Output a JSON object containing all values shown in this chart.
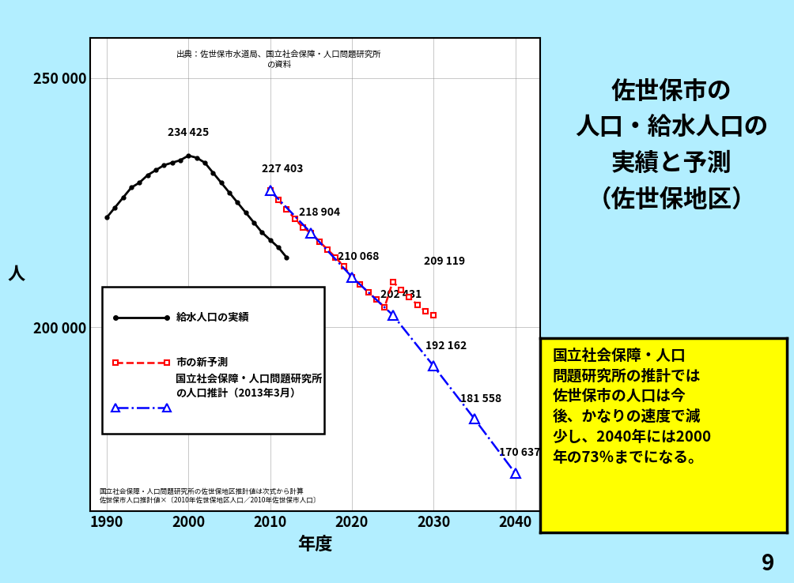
{
  "bg_color": "#b2eeff",
  "plot_bg_color": "#ffffff",
  "title_text": "佐世保市の\n人口・給水人口の\n実績と予測\n（佐世保地区）",
  "ylabel": "人",
  "xlabel": "年度",
  "source_note": "出典：佐世保市水道局、国立社会保障・人口問題研究所\nの資料",
  "footnote": "国立社会保障・人口問題研究所の佐世保地区推計値は次式から計算\n佐世保市人口推計値×〔2010年佐世保地区人口／2010年佐世保市人口〕",
  "box_text": "国立社会保障・人口\n問題研究所の推計では\n佐世保市の人口は今\n後、かなりの速度で減\n少し、2040年には2000\n年の73％までになる。",
  "page_num": "9",
  "ylim": [
    163000,
    258000
  ],
  "xlim": [
    1988,
    2043
  ],
  "yticks": [
    200000,
    250000
  ],
  "xticks": [
    1990,
    2000,
    2010,
    2020,
    2030,
    2040
  ],
  "actual_x": [
    1990,
    1991,
    1992,
    1993,
    1994,
    1995,
    1996,
    1997,
    1998,
    1999,
    2000,
    2001,
    2002,
    2003,
    2004,
    2005,
    2006,
    2007,
    2008,
    2009,
    2010,
    2011,
    2012
  ],
  "actual_y": [
    222000,
    224000,
    226000,
    228000,
    229000,
    230500,
    231500,
    232500,
    233000,
    233500,
    234425,
    234000,
    233000,
    231000,
    229000,
    227000,
    225000,
    223000,
    221000,
    219000,
    217500,
    216000,
    214000
  ],
  "city_pred_x": [
    2010,
    2011,
    2012,
    2013,
    2014,
    2015,
    2016,
    2017,
    2018,
    2019,
    2020,
    2021,
    2022,
    2023,
    2024,
    2025,
    2026,
    2027,
    2028,
    2029,
    2030
  ],
  "city_pred_y": [
    227403,
    225500,
    223600,
    221800,
    220000,
    218904,
    217200,
    215600,
    214000,
    212200,
    210068,
    208500,
    207000,
    205500,
    204000,
    209119,
    207500,
    206000,
    204500,
    203200,
    202431
  ],
  "nli_pred_x": [
    2010,
    2015,
    2020,
    2025,
    2030,
    2035,
    2040
  ],
  "nli_pred_y": [
    227403,
    218904,
    210068,
    202431,
    192162,
    181558,
    170637
  ],
  "legend1": "給水人口の実績",
  "legend2": "市の新予測",
  "legend3": "国立社会保障・人口問題研究所\nの人口推計（2013年3月）"
}
